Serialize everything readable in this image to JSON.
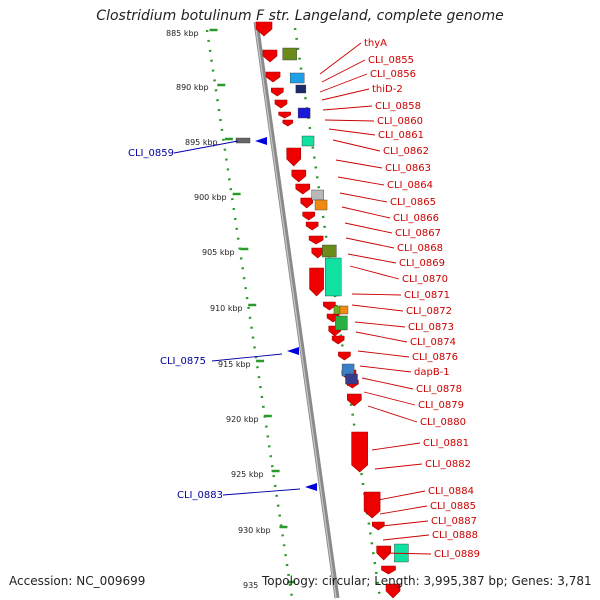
{
  "header": {
    "title": "Clostridium botulinum F str. Langeland, complete genome"
  },
  "footer": {
    "accession": "Accession: NC_009699",
    "summary": "Topology: circular; Length: 3,995,387 bp; Genes: 3,781"
  },
  "ticks": [
    "885 kbp",
    "890 kbp",
    "895 kbp",
    "900 kbp",
    "905 kbp",
    "910 kbp",
    "915 kbp",
    "920 kbp",
    "925 kbp",
    "930 kbp",
    "935"
  ],
  "colors": {
    "cds": "#ff0000",
    "rna": "#0000cc",
    "backbone": "#888888",
    "tick_dots": "#2a9a2a",
    "gene_label": "#cc0000",
    "rna_label": "#000099"
  },
  "right_labels": [
    "thyA",
    "CLI_0855",
    "CLI_0856",
    "thiD-2",
    "CLI_0858",
    "CLI_0860",
    "CLI_0861",
    "CLI_0862",
    "CLI_0863",
    "CLI_0864",
    "CLI_0865",
    "CLI_0866",
    "CLI_0867",
    "CLI_0868",
    "CLI_0869",
    "CLI_0870",
    "CLI_0871",
    "CLI_0872",
    "CLI_0873",
    "CLI_0874",
    "CLI_0876",
    "dapB-1",
    "CLI_0878",
    "CLI_0879",
    "CLI_0880",
    "CLI_0881",
    "CLI_0882",
    "CLI_0884",
    "CLI_0885",
    "CLI_0887",
    "CLI_0888",
    "CLI_0889"
  ],
  "left_labels": [
    "CLI_0859",
    "CLI_0875",
    "CLI_0883"
  ]
}
